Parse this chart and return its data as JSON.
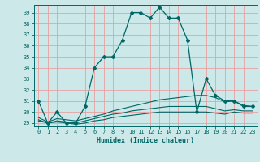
{
  "title": "",
  "xlabel": "Humidex (Indice chaleur)",
  "bg_color": "#cce8e8",
  "grid_color": "#e8a0a0",
  "line_color": "#006666",
  "xlim": [
    -0.5,
    23.5
  ],
  "ylim": [
    28.7,
    39.7
  ],
  "yticks": [
    29,
    30,
    31,
    32,
    33,
    34,
    35,
    36,
    37,
    38,
    39
  ],
  "xticks": [
    0,
    1,
    2,
    3,
    4,
    5,
    6,
    7,
    8,
    9,
    10,
    11,
    12,
    13,
    14,
    15,
    16,
    17,
    18,
    19,
    20,
    21,
    22,
    23
  ],
  "curves": [
    {
      "x": [
        0,
        1,
        2,
        3,
        4,
        5,
        6,
        7,
        8,
        9,
        10,
        11,
        12,
        13,
        14,
        15,
        16,
        17,
        18,
        19,
        20,
        21,
        22,
        23
      ],
      "y": [
        31,
        29,
        30,
        29,
        29,
        30.5,
        34,
        35,
        35,
        36.5,
        39,
        39,
        38.5,
        39.5,
        38.5,
        38.5,
        36.5,
        30,
        33,
        31.5,
        31,
        31,
        30.5,
        30.5
      ],
      "marker": true
    },
    {
      "x": [
        0,
        1,
        2,
        3,
        4,
        5,
        6,
        7,
        8,
        9,
        10,
        11,
        12,
        13,
        14,
        15,
        16,
        17,
        18,
        19,
        20,
        21,
        22,
        23
      ],
      "y": [
        29.5,
        29.1,
        29.4,
        29.3,
        29.2,
        29.4,
        29.6,
        29.8,
        30.1,
        30.3,
        30.5,
        30.7,
        30.9,
        31.1,
        31.2,
        31.3,
        31.4,
        31.5,
        31.5,
        31.3,
        30.9,
        31.0,
        30.6,
        30.5
      ],
      "marker": false
    },
    {
      "x": [
        0,
        1,
        2,
        3,
        4,
        5,
        6,
        7,
        8,
        9,
        10,
        11,
        12,
        13,
        14,
        15,
        16,
        17,
        18,
        19,
        20,
        21,
        22,
        23
      ],
      "y": [
        29.3,
        29.0,
        29.2,
        29.1,
        29.0,
        29.2,
        29.4,
        29.6,
        29.8,
        29.9,
        30.1,
        30.2,
        30.3,
        30.4,
        30.5,
        30.5,
        30.5,
        30.5,
        30.5,
        30.3,
        30.1,
        30.2,
        30.1,
        30.1
      ],
      "marker": false
    },
    {
      "x": [
        0,
        1,
        2,
        3,
        4,
        5,
        6,
        7,
        8,
        9,
        10,
        11,
        12,
        13,
        14,
        15,
        16,
        17,
        18,
        19,
        20,
        21,
        22,
        23
      ],
      "y": [
        29.2,
        29.0,
        29.1,
        29.0,
        28.9,
        29.0,
        29.2,
        29.3,
        29.5,
        29.6,
        29.7,
        29.8,
        29.9,
        30.0,
        30.0,
        30.0,
        30.0,
        30.0,
        30.0,
        29.9,
        29.8,
        30.0,
        29.9,
        29.9
      ],
      "marker": false
    }
  ]
}
